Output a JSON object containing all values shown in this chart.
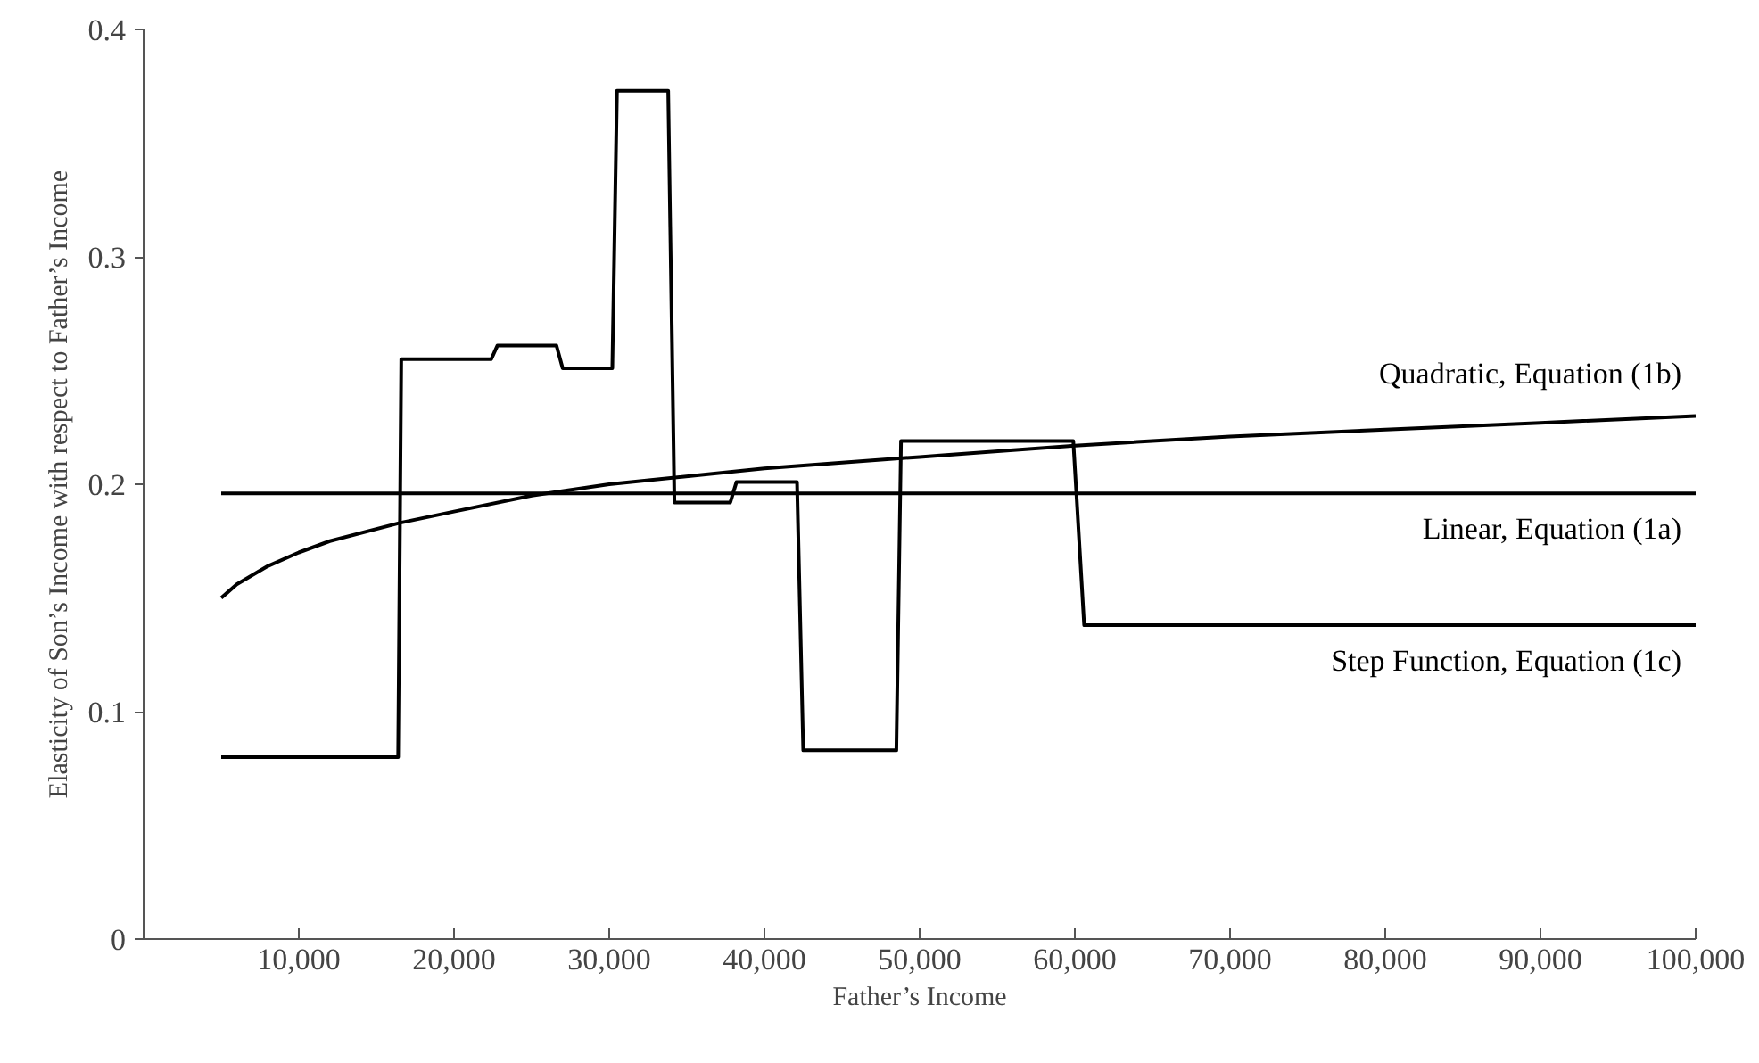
{
  "chart_data": {
    "type": "line",
    "xlabel": "Father’s Income",
    "ylabel": "Elasticity of Son’s Income with respect to Father’s Income",
    "xlim": [
      0,
      100000
    ],
    "ylim": [
      0,
      0.4
    ],
    "xticks": [
      {
        "value": 10000,
        "label": "10,000"
      },
      {
        "value": 20000,
        "label": "20,000"
      },
      {
        "value": 30000,
        "label": "30,000"
      },
      {
        "value": 40000,
        "label": "40,000"
      },
      {
        "value": 50000,
        "label": "50,000"
      },
      {
        "value": 60000,
        "label": "60,000"
      },
      {
        "value": 70000,
        "label": "70,000"
      },
      {
        "value": 80000,
        "label": "80,000"
      },
      {
        "value": 90000,
        "label": "90,000"
      },
      {
        "value": 100000,
        "label": "100,000"
      }
    ],
    "yticks": [
      0,
      0.1,
      0.2,
      0.3,
      0.4
    ],
    "grid": false,
    "legend": false,
    "marker": "none",
    "line_style": "solid",
    "series": [
      {
        "name": "Quadratic, Equation (1b)",
        "color": "#000000",
        "x": [
          5000,
          6000,
          7000,
          8000,
          10000,
          12000,
          16500,
          20000,
          25000,
          30000,
          40000,
          50000,
          60000,
          70000,
          80000,
          90000,
          100000
        ],
        "values": [
          0.15,
          0.156,
          0.16,
          0.164,
          0.17,
          0.175,
          0.183,
          0.188,
          0.195,
          0.2,
          0.207,
          0.212,
          0.217,
          0.221,
          0.224,
          0.227,
          0.23
        ]
      },
      {
        "name": "Linear, Equation (1a)",
        "color": "#000000",
        "x": [
          5000,
          100000
        ],
        "values": [
          0.196,
          0.196
        ]
      },
      {
        "name": "Step Function, Equation (1c)",
        "color": "#000000",
        "x": [
          5000,
          16400,
          16600,
          22400,
          22800,
          26600,
          27000,
          30200,
          30500,
          33800,
          34200,
          37800,
          38200,
          42100,
          42500,
          48500,
          48800,
          59900,
          60600,
          100000
        ],
        "values": [
          0.08,
          0.08,
          0.255,
          0.255,
          0.261,
          0.261,
          0.251,
          0.251,
          0.373,
          0.373,
          0.192,
          0.192,
          0.201,
          0.201,
          0.083,
          0.083,
          0.219,
          0.219,
          0.138,
          0.138
        ]
      }
    ]
  }
}
